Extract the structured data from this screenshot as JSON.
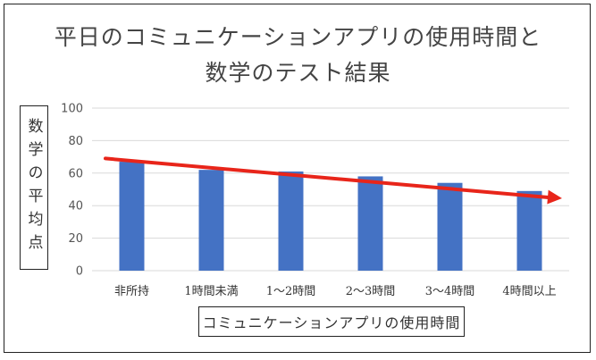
{
  "chart_data": {
    "type": "bar",
    "title_line1": "平日のコミュニケーションアプリの使用時間と",
    "title_line2": "数学のテスト結果",
    "ylabel": "数学の平均点",
    "xlabel": "コミュニケーションアプリの使用時間",
    "categories": [
      "非所持",
      "1時間未満",
      "1～2時間",
      "2～3時間",
      "3～4時間",
      "4時間以上"
    ],
    "values": [
      67,
      62,
      61,
      58,
      54,
      49
    ],
    "ylim": [
      0,
      100
    ],
    "yticks": [
      0,
      20,
      40,
      60,
      80,
      100
    ],
    "grid": true,
    "bar_color": "#4472C4",
    "trend_arrow": {
      "color": "#E8251A",
      "from_value": 69,
      "to_value": 45
    }
  }
}
